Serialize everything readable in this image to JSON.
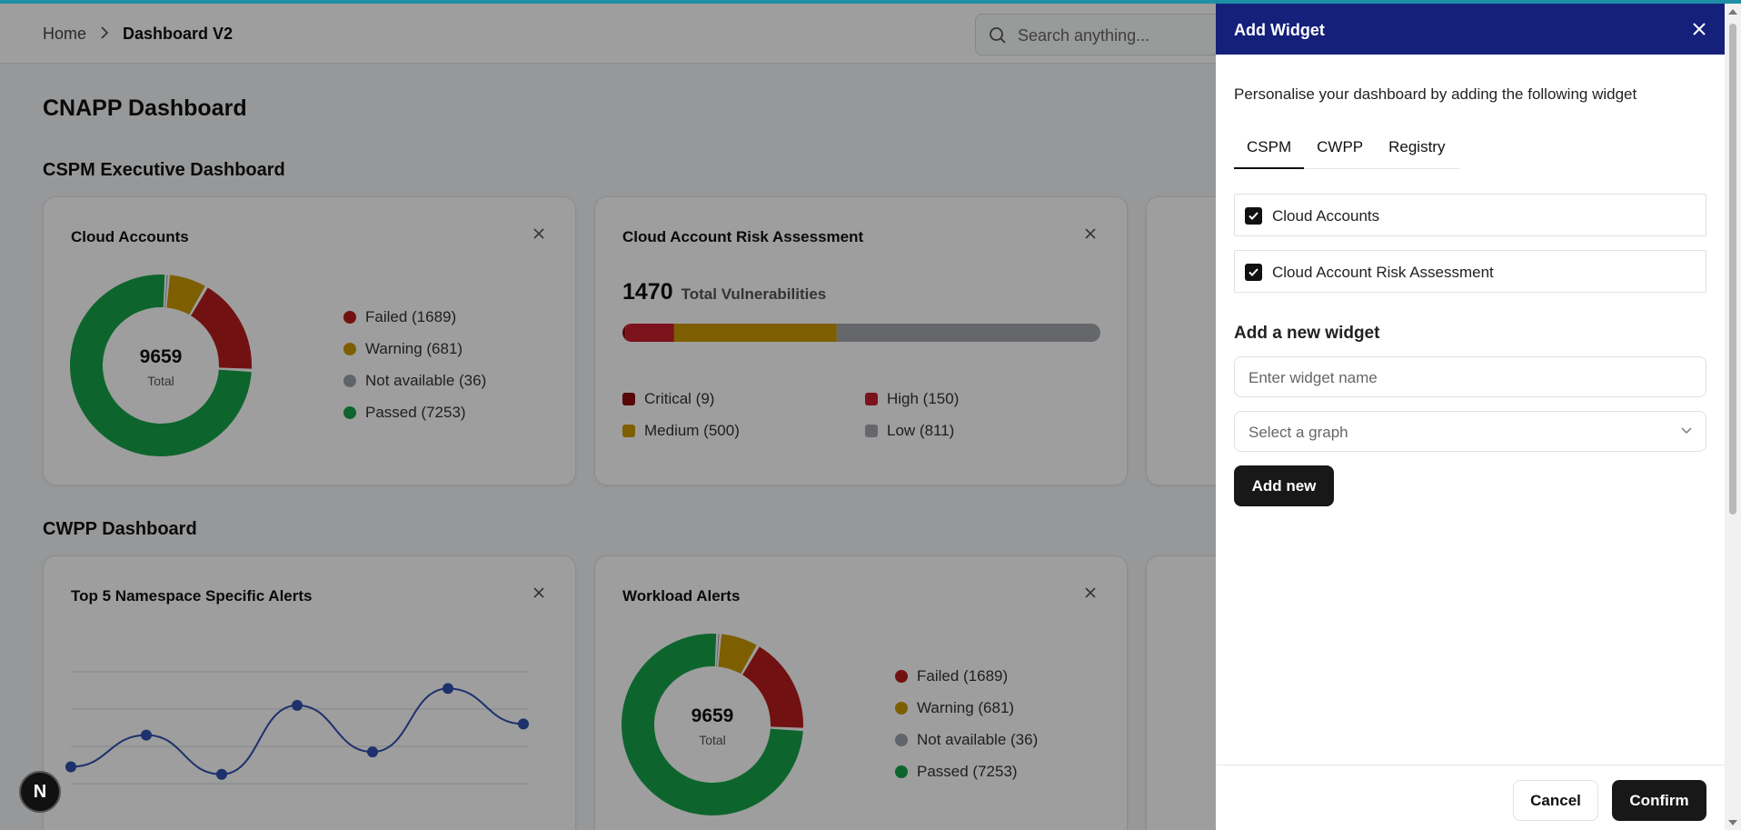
{
  "header": {
    "breadcrumb_home": "Home",
    "breadcrumb_current": "Dashboard V2",
    "search_placeholder": "Search anything..."
  },
  "page_title": "CNAPP Dashboard",
  "sections": {
    "cspm": "CSPM Executive Dashboard",
    "cwpp": "CWPP Dashboard"
  },
  "colors": {
    "failed": "#b91c1c",
    "warning": "#ca9a04",
    "not_available": "#9ca3af",
    "passed": "#16a34a",
    "critical": "#8b0d0d",
    "high": "#c81e2c",
    "medium": "#ca9a04",
    "low": "#a3a6ad",
    "line": "#2f4fb0",
    "drawer_header": "#15207a"
  },
  "cloud_accounts": {
    "title": "Cloud Accounts",
    "total": "9659",
    "total_label": "Total",
    "legend": [
      {
        "label": "Failed (1689)",
        "value": 1689,
        "color_key": "failed"
      },
      {
        "label": "Warning (681)",
        "value": 681,
        "color_key": "warning"
      },
      {
        "label": "Not available (36)",
        "value": 36,
        "color_key": "not_available"
      },
      {
        "label": "Passed (7253)",
        "value": 7253,
        "color_key": "passed"
      }
    ]
  },
  "risk_assessment": {
    "title": "Cloud Account Risk Assessment",
    "total": "1470",
    "total_label": "Total Vulnerabilities",
    "legend": [
      {
        "label": "Critical (9)",
        "value": 9,
        "color_key": "critical"
      },
      {
        "label": "High (150)",
        "value": 150,
        "color_key": "high"
      },
      {
        "label": "Medium (500)",
        "value": 500,
        "color_key": "medium"
      },
      {
        "label": "Low (811)",
        "value": 811,
        "color_key": "low"
      }
    ]
  },
  "namespace_alerts": {
    "title": "Top 5 Namespace Specific Alerts"
  },
  "chart_data": [
    {
      "type": "pie",
      "title": "Cloud Accounts",
      "categories": [
        "Failed",
        "Warning",
        "Not available",
        "Passed"
      ],
      "values": [
        1689,
        681,
        36,
        7253
      ]
    },
    {
      "type": "bar",
      "title": "Cloud Account Risk Assessment",
      "categories": [
        "Critical",
        "High",
        "Medium",
        "Low"
      ],
      "values": [
        9,
        150,
        500,
        811
      ]
    },
    {
      "type": "line",
      "title": "Top 5 Namespace Specific Alerts",
      "x": [
        0,
        1,
        2,
        3,
        4,
        5,
        6
      ],
      "values": [
        30,
        47,
        26,
        63,
        38,
        72,
        53
      ],
      "ylim": [
        0,
        100
      ],
      "grid": true
    },
    {
      "type": "pie",
      "title": "Workload Alerts",
      "categories": [
        "Failed",
        "Warning",
        "Not available",
        "Passed"
      ],
      "values": [
        1689,
        681,
        36,
        7253
      ]
    }
  ],
  "workload_alerts": {
    "title": "Workload Alerts",
    "total": "9659",
    "total_label": "Total",
    "legend": [
      {
        "label": "Failed (1689)",
        "color_key": "failed"
      },
      {
        "label": "Warning (681)",
        "color_key": "warning"
      },
      {
        "label": "Not available (36)",
        "color_key": "not_available"
      },
      {
        "label": "Passed (7253)",
        "color_key": "passed"
      }
    ]
  },
  "fab_label": "N",
  "drawer": {
    "title": "Add Widget",
    "description": "Personalise your dashboard by adding the following widget",
    "tabs": [
      "CSPM",
      "CWPP",
      "Registry"
    ],
    "active_tab": "CSPM",
    "widgets": [
      {
        "label": "Cloud Accounts",
        "checked": true
      },
      {
        "label": "Cloud Account Risk Assessment",
        "checked": true
      }
    ],
    "new_widget_title": "Add a new widget",
    "name_placeholder": "Enter widget name",
    "graph_placeholder": "Select a graph",
    "add_new_label": "Add new",
    "cancel_label": "Cancel",
    "confirm_label": "Confirm"
  }
}
